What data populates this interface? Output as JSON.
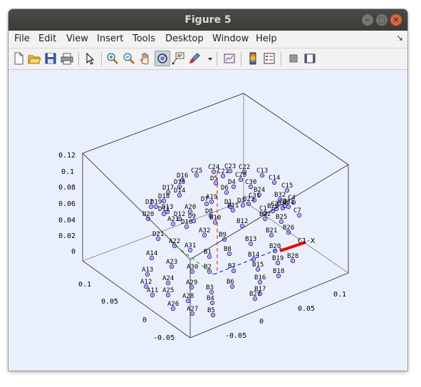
{
  "window": {
    "title": "Figure 5",
    "min_glyph": "–",
    "max_glyph": "□",
    "close_glyph": "×"
  },
  "menu": {
    "items": [
      "File",
      "Edit",
      "View",
      "Insert",
      "Tools",
      "Desktop",
      "Window",
      "Help"
    ],
    "dock_glyph": "↘"
  },
  "toolbar": {
    "buttons": [
      "new-figure",
      "open-file",
      "save",
      "print",
      "edit-plot-arrow",
      "zoom-in",
      "zoom-out",
      "pan-hand",
      "rotate-3d",
      "data-cursor",
      "brush",
      "brush-dropdown",
      "link-plot",
      "insert-colorbar",
      "insert-legend",
      "hide-plot-tools",
      "show-plot-tools"
    ],
    "active": "rotate-3d"
  },
  "plot": {
    "z_ticks": [
      "0.12",
      "0.1",
      "0.08",
      "0.06",
      "0.04",
      "0.02",
      "0"
    ],
    "left_ticks": [
      "0.1",
      "0.05",
      "0",
      "-0.05"
    ],
    "right_ticks": [
      "-0.05",
      "0",
      "0.05",
      "0.1"
    ],
    "axis_label": "C1-X",
    "colors": {
      "marker": "#2222cc",
      "center": "#ff0000",
      "x_axis": "#ff0000",
      "y_axis": "#00aa00",
      "z_axis": "#0000ff",
      "box": "#222222",
      "background": "#ffffff"
    },
    "points": [
      {
        "label": "C23"
      },
      {
        "label": "C22"
      },
      {
        "label": "C24"
      },
      {
        "label": "C25"
      },
      {
        "label": "C21"
      },
      {
        "label": "C13"
      },
      {
        "label": "C20"
      },
      {
        "label": "C14"
      },
      {
        "label": "C15"
      },
      {
        "label": "C30"
      },
      {
        "label": "C31"
      },
      {
        "label": "C4"
      },
      {
        "label": "C3"
      },
      {
        "label": "C2"
      },
      {
        "label": "C1"
      },
      {
        "label": "C7"
      },
      {
        "label": "D16"
      },
      {
        "label": "D15"
      },
      {
        "label": "D17"
      },
      {
        "label": "D14"
      },
      {
        "label": "D18"
      },
      {
        "label": "D19"
      },
      {
        "label": "D2"
      },
      {
        "label": "D13"
      },
      {
        "label": "D12"
      },
      {
        "label": "D11"
      },
      {
        "label": "D20"
      },
      {
        "label": "D21"
      },
      {
        "label": "D10"
      },
      {
        "label": "D9"
      },
      {
        "label": "D8"
      },
      {
        "label": "D7"
      },
      {
        "label": "D6"
      },
      {
        "label": "D5"
      },
      {
        "label": "D4"
      },
      {
        "label": "D3"
      },
      {
        "label": "D1"
      },
      {
        "label": "A19"
      },
      {
        "label": "A20"
      },
      {
        "label": "A21"
      },
      {
        "label": "A22"
      },
      {
        "label": "A23"
      },
      {
        "label": "A24"
      },
      {
        "label": "A25"
      },
      {
        "label": "A26"
      },
      {
        "label": "A27"
      },
      {
        "label": "A28"
      },
      {
        "label": "A29"
      },
      {
        "label": "A30"
      },
      {
        "label": "A31"
      },
      {
        "label": "A32"
      },
      {
        "label": "A11"
      },
      {
        "label": "A12"
      },
      {
        "label": "A13"
      },
      {
        "label": "A14"
      },
      {
        "label": "B1"
      },
      {
        "label": "B2"
      },
      {
        "label": "B3"
      },
      {
        "label": "B4"
      },
      {
        "label": "B5"
      },
      {
        "label": "B6"
      },
      {
        "label": "B7"
      },
      {
        "label": "B8"
      },
      {
        "label": "B9"
      },
      {
        "label": "B10"
      },
      {
        "label": "B11"
      },
      {
        "label": "B12"
      },
      {
        "label": "B13"
      },
      {
        "label": "B14"
      },
      {
        "label": "B15"
      },
      {
        "label": "B16"
      },
      {
        "label": "B17"
      },
      {
        "label": "B18"
      },
      {
        "label": "B19"
      },
      {
        "label": "B20"
      },
      {
        "label": "B21"
      },
      {
        "label": "B22"
      },
      {
        "label": "B23"
      },
      {
        "label": "B24"
      },
      {
        "label": "B25"
      },
      {
        "label": "B26"
      },
      {
        "label": "B27"
      },
      {
        "label": "B28"
      },
      {
        "label": "B29"
      },
      {
        "label": "B30"
      },
      {
        "label": "B31"
      },
      {
        "label": "B32"
      }
    ]
  }
}
